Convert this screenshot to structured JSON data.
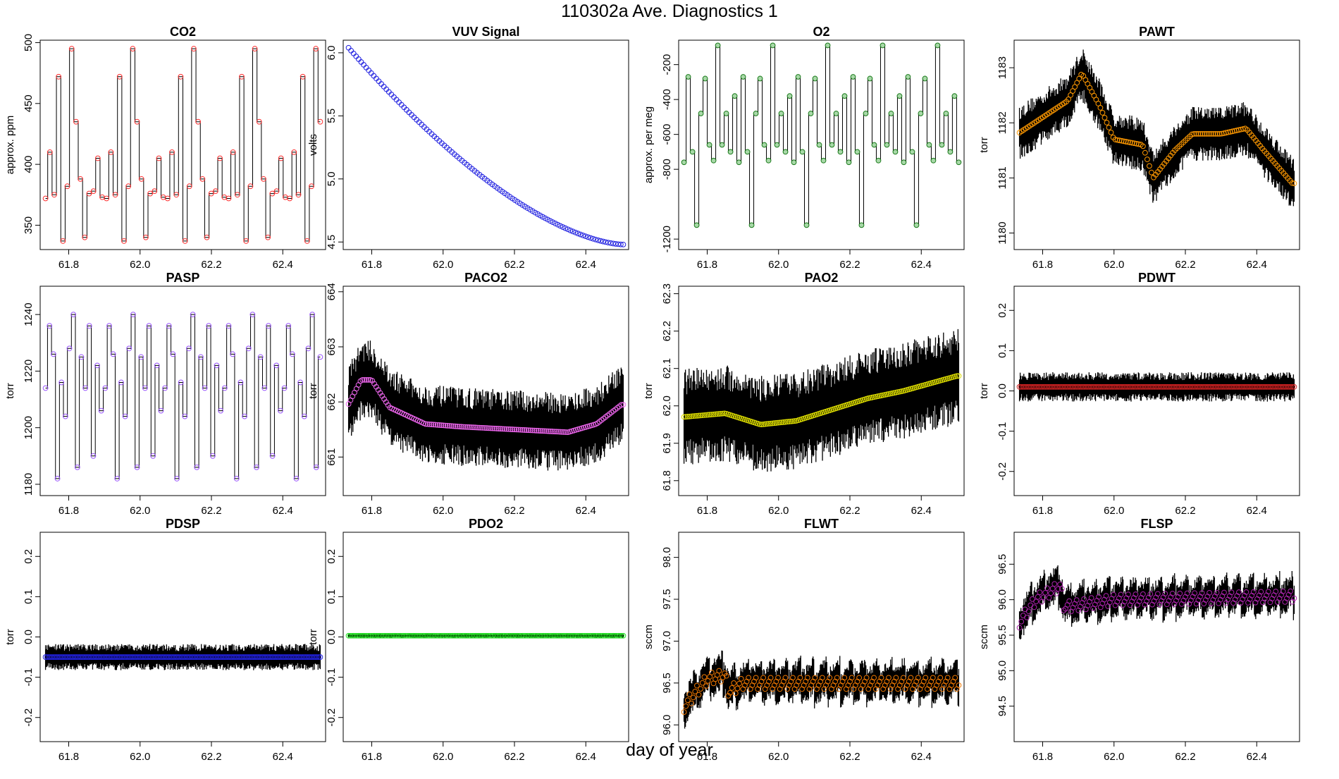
{
  "title": "110302a   Ave. Diagnostics 1",
  "xlabel": "day of year",
  "chart_data": [
    {
      "type": "line",
      "title": "CO2",
      "ylabel": "approx. ppm",
      "xlim": [
        61.72,
        62.52
      ],
      "ylim": [
        330,
        502
      ],
      "xticks": [
        61.8,
        62.0,
        62.2,
        62.4
      ],
      "xtick_labels": [
        "61.8",
        "62.0",
        "62.2",
        "62.4"
      ],
      "yticks": [
        350,
        400,
        450,
        500
      ],
      "ytick_labels": [
        "350",
        "400",
        "450",
        "500"
      ],
      "pattern": "cycle",
      "levels": [
        372,
        410,
        375,
        472,
        337,
        382,
        495,
        435,
        388,
        340,
        376,
        378,
        405,
        373
      ],
      "point_color": "#ff3030",
      "fill": "none",
      "n": 64
    },
    {
      "type": "line",
      "title": "VUV Signal",
      "ylabel": "volts",
      "xlim": [
        61.72,
        62.52
      ],
      "ylim": [
        4.44,
        6.1
      ],
      "xticks": [
        61.8,
        62.0,
        62.2,
        62.4
      ],
      "xtick_labels": [
        "61.8",
        "62.0",
        "62.2",
        "62.4"
      ],
      "yticks": [
        4.5,
        5.0,
        5.5,
        6.0
      ],
      "ytick_labels": [
        "4.5",
        "5.0",
        "5.5",
        "6.0"
      ],
      "pattern": "curve",
      "start": 6.04,
      "end": 4.48,
      "point_color": "#2020e0",
      "fill": "none",
      "n": 110
    },
    {
      "type": "line",
      "title": "O2",
      "ylabel": "approx. per meg",
      "xlim": [
        61.72,
        62.52
      ],
      "ylim": [
        -1260,
        -60
      ],
      "xticks": [
        61.8,
        62.0,
        62.2,
        62.4
      ],
      "xtick_labels": [
        "61.8",
        "62.0",
        "62.2",
        "62.4"
      ],
      "yticks": [
        -1200,
        -800,
        -600,
        -400,
        -200
      ],
      "ytick_labels": [
        "-1200",
        "-800",
        "-600",
        "-400",
        "-200"
      ],
      "pattern": "cycle",
      "levels": [
        -760,
        -270,
        -700,
        -1120,
        -480,
        -280,
        -660,
        -750,
        -90,
        -660,
        -480,
        -700,
        -380
      ],
      "point_color": "#1a7a1a",
      "fill": "#a8d8a8",
      "n": 66
    },
    {
      "type": "line",
      "title": "PAWT",
      "ylabel": "torr",
      "xlim": [
        61.72,
        62.52
      ],
      "ylim": [
        1179.7,
        1183.5
      ],
      "xticks": [
        61.8,
        62.0,
        62.2,
        62.4
      ],
      "xtick_labels": [
        "61.8",
        "62.0",
        "62.2",
        "62.4"
      ],
      "yticks": [
        1180,
        1181,
        1182,
        1183
      ],
      "ytick_labels": [
        "1180",
        "1181",
        "1182",
        "1183"
      ],
      "pattern": "noisy",
      "trend": [
        [
          61.73,
          1181.8
        ],
        [
          61.8,
          1182.1
        ],
        [
          61.87,
          1182.4
        ],
        [
          61.91,
          1182.9
        ],
        [
          61.96,
          1182.3
        ],
        [
          62.0,
          1181.7
        ],
        [
          62.08,
          1181.6
        ],
        [
          62.11,
          1181.0
        ],
        [
          62.17,
          1181.5
        ],
        [
          62.22,
          1181.8
        ],
        [
          62.3,
          1181.8
        ],
        [
          62.37,
          1181.9
        ],
        [
          62.42,
          1181.5
        ],
        [
          62.5,
          1180.9
        ]
      ],
      "spread": 0.38,
      "point_color": "#ff9900",
      "fill": "none",
      "n": 130
    },
    {
      "type": "line",
      "title": "PASP",
      "ylabel": "torr",
      "xlim": [
        61.72,
        62.52
      ],
      "ylim": [
        1176,
        1250
      ],
      "xticks": [
        61.8,
        62.0,
        62.2,
        62.4
      ],
      "xtick_labels": [
        "61.8",
        "62.0",
        "62.2",
        "62.4"
      ],
      "yticks": [
        1180,
        1200,
        1220,
        1240
      ],
      "ytick_labels": [
        "1180",
        "1200",
        "1220",
        "1240"
      ],
      "pattern": "cycle",
      "levels": [
        1214,
        1236,
        1226,
        1182,
        1216,
        1204,
        1228,
        1240,
        1186,
        1225,
        1214,
        1236,
        1190,
        1222,
        1206
      ],
      "point_color": "#9955ff",
      "fill": "none",
      "n": 70
    },
    {
      "type": "line",
      "title": "PACO2",
      "ylabel": "torr",
      "xlim": [
        61.72,
        62.52
      ],
      "ylim": [
        660.3,
        664.1
      ],
      "xticks": [
        61.8,
        62.0,
        62.2,
        62.4
      ],
      "xtick_labels": [
        "61.8",
        "62.0",
        "62.2",
        "62.4"
      ],
      "yticks": [
        661,
        662,
        663,
        664
      ],
      "ytick_labels": [
        "661",
        "662",
        "663",
        "664"
      ],
      "pattern": "noisy",
      "trend": [
        [
          61.73,
          661.9
        ],
        [
          61.77,
          662.4
        ],
        [
          61.8,
          662.4
        ],
        [
          61.85,
          661.9
        ],
        [
          61.95,
          661.6
        ],
        [
          62.05,
          661.55
        ],
        [
          62.2,
          661.5
        ],
        [
          62.35,
          661.45
        ],
        [
          62.43,
          661.6
        ],
        [
          62.5,
          661.95
        ]
      ],
      "spread": 0.55,
      "point_color": "#ee66ee",
      "fill": "none",
      "n": 140
    },
    {
      "type": "line",
      "title": "PAO2",
      "ylabel": "torr",
      "xlim": [
        61.72,
        62.52
      ],
      "ylim": [
        61.76,
        62.32
      ],
      "xticks": [
        61.8,
        62.0,
        62.2,
        62.4
      ],
      "xtick_labels": [
        "61.8",
        "62.0",
        "62.2",
        "62.4"
      ],
      "yticks": [
        61.8,
        61.9,
        62.0,
        62.1,
        62.2,
        62.3
      ],
      "ytick_labels": [
        "61.8",
        "61.9",
        "62.0",
        "62.1",
        "62.2",
        "62.3"
      ],
      "pattern": "noisy",
      "trend": [
        [
          61.73,
          61.97
        ],
        [
          61.85,
          61.98
        ],
        [
          61.95,
          61.95
        ],
        [
          62.05,
          61.96
        ],
        [
          62.15,
          61.99
        ],
        [
          62.25,
          62.02
        ],
        [
          62.35,
          62.04
        ],
        [
          62.5,
          62.08
        ]
      ],
      "spread": 0.1,
      "point_color": "#dddd00",
      "fill": "none",
      "n": 150
    },
    {
      "type": "line",
      "title": "PDWT",
      "ylabel": "torr",
      "xlim": [
        61.72,
        62.52
      ],
      "ylim": [
        -0.26,
        0.26
      ],
      "xticks": [
        61.8,
        62.0,
        62.2,
        62.4
      ],
      "xtick_labels": [
        "61.8",
        "62.0",
        "62.2",
        "62.4"
      ],
      "yticks": [
        -0.2,
        -0.1,
        0.0,
        0.1,
        0.2
      ],
      "ytick_labels": [
        "-0.2",
        "-0.1",
        "0.0",
        "0.1",
        "0.2"
      ],
      "pattern": "noisy",
      "trend": [
        [
          61.73,
          0.01
        ],
        [
          62.5,
          0.01
        ]
      ],
      "spread": 0.028,
      "point_color": "#cc2222",
      "fill": "none",
      "n": 170
    },
    {
      "type": "line",
      "title": "PDSP",
      "ylabel": "torr",
      "xlim": [
        61.72,
        62.52
      ],
      "ylim": [
        -0.26,
        0.26
      ],
      "xticks": [
        61.8,
        62.0,
        62.2,
        62.4
      ],
      "xtick_labels": [
        "61.8",
        "62.0",
        "62.2",
        "62.4"
      ],
      "yticks": [
        -0.2,
        -0.1,
        0.0,
        0.1,
        0.2
      ],
      "ytick_labels": [
        "-0.2",
        "-0.1",
        "0.0",
        "0.1",
        "0.2"
      ],
      "pattern": "noisy",
      "trend": [
        [
          61.73,
          -0.05
        ],
        [
          62.5,
          -0.05
        ]
      ],
      "spread": 0.025,
      "point_color": "#2222dd",
      "fill": "none",
      "n": 170
    },
    {
      "type": "line",
      "title": "PDO2",
      "ylabel": "torr",
      "xlim": [
        61.72,
        62.52
      ],
      "ylim": [
        -0.26,
        0.26
      ],
      "xticks": [
        61.8,
        62.0,
        62.2,
        62.4
      ],
      "xtick_labels": [
        "61.8",
        "62.0",
        "62.2",
        "62.4"
      ],
      "yticks": [
        -0.2,
        -0.1,
        0.0,
        0.1,
        0.2
      ],
      "ytick_labels": [
        "-0.2",
        "-0.1",
        "0.0",
        "0.1",
        "0.2"
      ],
      "pattern": "flat",
      "trend": [
        [
          61.73,
          0.003
        ],
        [
          62.5,
          0.003
        ]
      ],
      "spread": 0.0,
      "point_color": "#22dd22",
      "fill": "none",
      "n": 170
    },
    {
      "type": "line",
      "title": "FLWT",
      "ylabel": "sccm",
      "xlim": [
        61.72,
        62.52
      ],
      "ylim": [
        95.8,
        98.3
      ],
      "xticks": [
        61.8,
        62.0,
        62.2,
        62.4
      ],
      "xtick_labels": [
        "61.8",
        "62.0",
        "62.2",
        "62.4"
      ],
      "yticks": [
        96.0,
        96.5,
        97.0,
        97.5,
        98.0
      ],
      "ytick_labels": [
        "96.0",
        "96.5",
        "97.0",
        "97.5",
        "98.0"
      ],
      "pattern": "sawtooth",
      "trend": [
        [
          61.73,
          96.2
        ],
        [
          61.8,
          96.55
        ],
        [
          61.85,
          96.6
        ],
        [
          61.86,
          96.4
        ],
        [
          61.9,
          96.5
        ],
        [
          62.5,
          96.5
        ]
      ],
      "spread": 0.18,
      "point_color": "#ee7700",
      "fill": "none",
      "n": 150
    },
    {
      "type": "line",
      "title": "FLSP",
      "ylabel": "sccm",
      "xlim": [
        61.72,
        62.52
      ],
      "ylim": [
        94.0,
        96.95
      ],
      "xticks": [
        61.8,
        62.0,
        62.2,
        62.4
      ],
      "xtick_labels": [
        "61.8",
        "62.0",
        "62.2",
        "62.4"
      ],
      "yticks": [
        94.5,
        95.0,
        95.5,
        96.0,
        96.5
      ],
      "ytick_labels": [
        "94.5",
        "95.0",
        "95.5",
        "96.0",
        "96.5"
      ],
      "pattern": "sawtooth",
      "trend": [
        [
          61.73,
          95.65
        ],
        [
          61.78,
          96.0
        ],
        [
          61.85,
          96.2
        ],
        [
          61.86,
          95.9
        ],
        [
          62.0,
          96.0
        ],
        [
          62.5,
          96.05
        ]
      ],
      "spread": 0.2,
      "point_color": "#aa22aa",
      "fill": "none",
      "n": 150
    }
  ]
}
